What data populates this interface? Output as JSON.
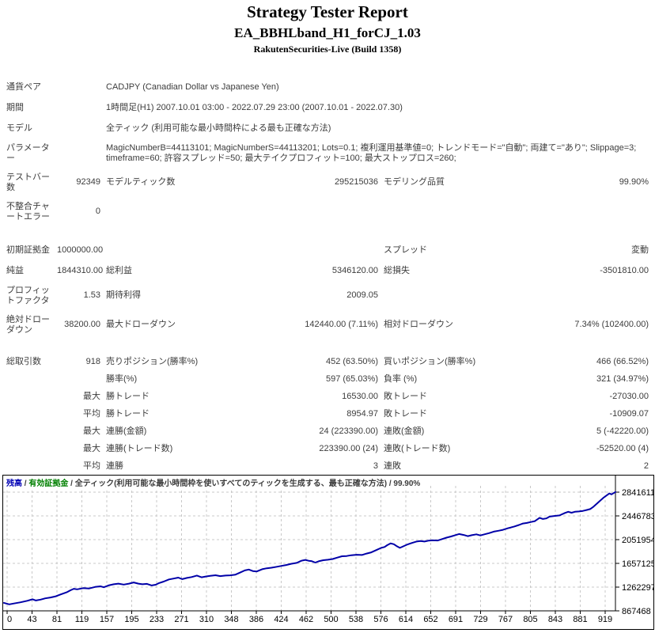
{
  "header": {
    "title": "Strategy Tester Report",
    "ea_name": "EA_BBHLband_H1_forCJ_1.03",
    "server_build": "RakutenSecurities-Live (Build 1358)"
  },
  "report": {
    "rows": [
      {
        "style": "s",
        "label": "通貨ペア",
        "wide": "CADJPY (Canadian Dollar vs Japanese Yen)"
      },
      {
        "style": "s",
        "label": "期間",
        "wide": "1時間足(H1) 2007.10.01 03:00 - 2022.07.29 23:00 (2007.10.01 - 2022.07.30)"
      },
      {
        "style": "s",
        "label": "モデル",
        "wide": "全ティック (利用可能な最小時間枠による最も正確な方法)"
      },
      {
        "style": "tall",
        "label": "パラメーター",
        "wide": "MagicNumberB=44113101; MagicNumberS=44113201; Lots=0.1; 複利運用基準値=0; トレンドモード=\"自動\"; 両建て=\"あり\"; Slippage=3; timeframe=60; 許容スプレッド=50; 最大テイクプロフィット=100; 最大ストップロス=260;"
      },
      {
        "style": "tall",
        "label": "テストバー数",
        "v1": "92349",
        "l2": "モデルティック数",
        "v2": "295215036",
        "l3": "モデリング品質",
        "v3": "99.90%"
      },
      {
        "style": "tall",
        "label": "不整合チャートエラー",
        "v1": "0",
        "l2": "",
        "v2": "",
        "l3": "",
        "v3": ""
      },
      {
        "spacer": true
      },
      {
        "style": "s",
        "label": "初期証拠金",
        "v1": "1000000.00",
        "l2": "",
        "v2": "",
        "l3": "スプレッド",
        "v3": "変動"
      },
      {
        "style": "s",
        "label": "純益",
        "v1": "1844310.00",
        "l2": "総利益",
        "v2": "5346120.00",
        "l3": "総損失",
        "v3": "-3501810.00"
      },
      {
        "style": "tall",
        "label": "プロフィットファクタ",
        "v1": "1.53",
        "l2": "期待利得",
        "v2": "2009.05",
        "l3": "",
        "v3": ""
      },
      {
        "style": "tall",
        "label": "絶対ドローダウン",
        "v1": "38200.00",
        "l2": "最大ドローダウン",
        "v2": "142440.00 (7.11%)",
        "l3": "相対ドローダウン",
        "v3": "7.34% (102400.00)"
      },
      {
        "spacer": true
      },
      {
        "style": "b",
        "label": "総取引数",
        "v1": "918",
        "l2": "売りポジション(勝率%)",
        "v2": "452 (63.50%)",
        "l3": "買いポジション(勝率%)",
        "v3": "466 (66.52%)"
      },
      {
        "style": "b",
        "label": "",
        "v1": "",
        "l2": "勝率(%)",
        "v2": "597 (65.03%)",
        "l3": "負率 (%)",
        "v3": "321 (34.97%)"
      },
      {
        "style": "b",
        "label": "",
        "v1": "最大",
        "l2": "勝トレード",
        "v2": "16530.00",
        "l3": "敗トレード",
        "v3": "-27030.00"
      },
      {
        "style": "b",
        "label": "",
        "v1": "平均",
        "l2": "勝トレード",
        "v2": "8954.97",
        "l3": "敗トレード",
        "v3": "-10909.07"
      },
      {
        "style": "b",
        "label": "",
        "v1": "最大",
        "l2": "連勝(金額)",
        "v2": "24 (223390.00)",
        "l3": "連敗(金額)",
        "v3": "5 (-42220.00)"
      },
      {
        "style": "b",
        "label": "",
        "v1": "最大",
        "l2": "連勝(トレード数)",
        "v2": "223390.00 (24)",
        "l3": "連敗(トレード数)",
        "v3": "-52520.00 (4)"
      },
      {
        "style": "b",
        "label": "",
        "v1": "平均",
        "l2": "連勝",
        "v2": "3",
        "l3": "連敗",
        "v3": "2"
      }
    ]
  },
  "chart": {
    "legend": {
      "balance_label": "残高",
      "equity_label": "有効証拠金",
      "model_label": "全ティック(利用可能な最小時間枠を使いすべてのティックを生成する、最も正確な方法)",
      "quality": "99.90%",
      "separator": " / "
    }
  },
  "chart_data": {
    "type": "line",
    "title": "残高 / 有効証拠金 / 全ティック(利用可能な最小時間枠を使いすべてのティックを生成する、最も正確な方法) / 99.90%",
    "xlabel": "取引数",
    "ylabel": "残高",
    "x_ticks": [
      0,
      43,
      81,
      119,
      157,
      195,
      233,
      271,
      310,
      348,
      386,
      424,
      462,
      500,
      538,
      576,
      614,
      652,
      691,
      729,
      767,
      805,
      843,
      881,
      919
    ],
    "y_ticks": [
      2841611,
      2446783,
      2051954,
      1657125,
      1262297,
      867468
    ],
    "xlim": [
      0,
      935
    ],
    "ylim": [
      867468,
      3131000
    ],
    "grid": "dashed",
    "legend_position": "top-left",
    "series": [
      {
        "name": "残高",
        "color": "#0000A8",
        "points": [
          [
            0,
            1000000
          ],
          [
            8,
            975000
          ],
          [
            15,
            990000
          ],
          [
            25,
            1010000
          ],
          [
            35,
            1035000
          ],
          [
            43,
            1060000
          ],
          [
            48,
            1040000
          ],
          [
            55,
            1055000
          ],
          [
            62,
            1075000
          ],
          [
            70,
            1090000
          ],
          [
            78,
            1110000
          ],
          [
            85,
            1140000
          ],
          [
            95,
            1180000
          ],
          [
            100,
            1210000
          ],
          [
            105,
            1235000
          ],
          [
            110,
            1225000
          ],
          [
            119,
            1245000
          ],
          [
            128,
            1240000
          ],
          [
            137,
            1265000
          ],
          [
            145,
            1275000
          ],
          [
            150,
            1260000
          ],
          [
            157,
            1290000
          ],
          [
            165,
            1310000
          ],
          [
            172,
            1320000
          ],
          [
            180,
            1305000
          ],
          [
            188,
            1320000
          ],
          [
            195,
            1340000
          ],
          [
            202,
            1320000
          ],
          [
            208,
            1310000
          ],
          [
            215,
            1316000
          ],
          [
            222,
            1290000
          ],
          [
            228,
            1302000
          ],
          [
            233,
            1330000
          ],
          [
            240,
            1355000
          ],
          [
            248,
            1390000
          ],
          [
            255,
            1405000
          ],
          [
            262,
            1420000
          ],
          [
            268,
            1395000
          ],
          [
            275,
            1415000
          ],
          [
            282,
            1430000
          ],
          [
            290,
            1455000
          ],
          [
            297,
            1425000
          ],
          [
            304,
            1440000
          ],
          [
            310,
            1450000
          ],
          [
            318,
            1460000
          ],
          [
            325,
            1445000
          ],
          [
            333,
            1455000
          ],
          [
            340,
            1458000
          ],
          [
            348,
            1470000
          ],
          [
            355,
            1505000
          ],
          [
            362,
            1540000
          ],
          [
            368,
            1555000
          ],
          [
            374,
            1530000
          ],
          [
            380,
            1523000
          ],
          [
            388,
            1560000
          ],
          [
            395,
            1575000
          ],
          [
            402,
            1585000
          ],
          [
            410,
            1600000
          ],
          [
            417,
            1615000
          ],
          [
            424,
            1630000
          ],
          [
            432,
            1650000
          ],
          [
            440,
            1665000
          ],
          [
            447,
            1700000
          ],
          [
            453,
            1715000
          ],
          [
            458,
            1700000
          ],
          [
            462,
            1695000
          ],
          [
            468,
            1670000
          ],
          [
            474,
            1695000
          ],
          [
            480,
            1710000
          ],
          [
            487,
            1718000
          ],
          [
            494,
            1730000
          ],
          [
            500,
            1750000
          ],
          [
            508,
            1775000
          ],
          [
            515,
            1780000
          ],
          [
            522,
            1793000
          ],
          [
            530,
            1800000
          ],
          [
            538,
            1797000
          ],
          [
            545,
            1820000
          ],
          [
            552,
            1840000
          ],
          [
            560,
            1880000
          ],
          [
            567,
            1915000
          ],
          [
            572,
            1930000
          ],
          [
            576,
            1960000
          ],
          [
            581,
            1990000
          ],
          [
            586,
            1975000
          ],
          [
            590,
            1945000
          ],
          [
            595,
            1915000
          ],
          [
            600,
            1940000
          ],
          [
            605,
            1965000
          ],
          [
            610,
            1985000
          ],
          [
            614,
            2000000
          ],
          [
            620,
            2020000
          ],
          [
            626,
            2030000
          ],
          [
            632,
            2020000
          ],
          [
            638,
            2035000
          ],
          [
            645,
            2040000
          ],
          [
            652,
            2038000
          ],
          [
            658,
            2060000
          ],
          [
            665,
            2085000
          ],
          [
            672,
            2105000
          ],
          [
            678,
            2125000
          ],
          [
            684,
            2145000
          ],
          [
            691,
            2130000
          ],
          [
            697,
            2110000
          ],
          [
            703,
            2125000
          ],
          [
            710,
            2140000
          ],
          [
            716,
            2122000
          ],
          [
            722,
            2140000
          ],
          [
            729,
            2160000
          ],
          [
            736,
            2185000
          ],
          [
            743,
            2200000
          ],
          [
            750,
            2215000
          ],
          [
            757,
            2240000
          ],
          [
            762,
            2255000
          ],
          [
            767,
            2270000
          ],
          [
            774,
            2295000
          ],
          [
            780,
            2320000
          ],
          [
            786,
            2330000
          ],
          [
            792,
            2345000
          ],
          [
            798,
            2360000
          ],
          [
            805,
            2415000
          ],
          [
            810,
            2395000
          ],
          [
            815,
            2405000
          ],
          [
            820,
            2435000
          ],
          [
            827,
            2445000
          ],
          [
            835,
            2455000
          ],
          [
            843,
            2495000
          ],
          [
            848,
            2515000
          ],
          [
            853,
            2500000
          ],
          [
            858,
            2515000
          ],
          [
            864,
            2520000
          ],
          [
            870,
            2530000
          ],
          [
            876,
            2545000
          ],
          [
            881,
            2560000
          ],
          [
            886,
            2600000
          ],
          [
            891,
            2650000
          ],
          [
            896,
            2700000
          ],
          [
            901,
            2750000
          ],
          [
            906,
            2790000
          ],
          [
            910,
            2820000
          ],
          [
            913,
            2805000
          ],
          [
            916,
            2825000
          ],
          [
            919,
            2844310
          ]
        ]
      }
    ]
  },
  "colors": {
    "balance_line": "#0000A8",
    "legend_balance": "#0000B4",
    "legend_equity": "#008000",
    "grid_line": "#c8c8c8",
    "axis_line": "#000000",
    "text": "#3c3c3c"
  }
}
